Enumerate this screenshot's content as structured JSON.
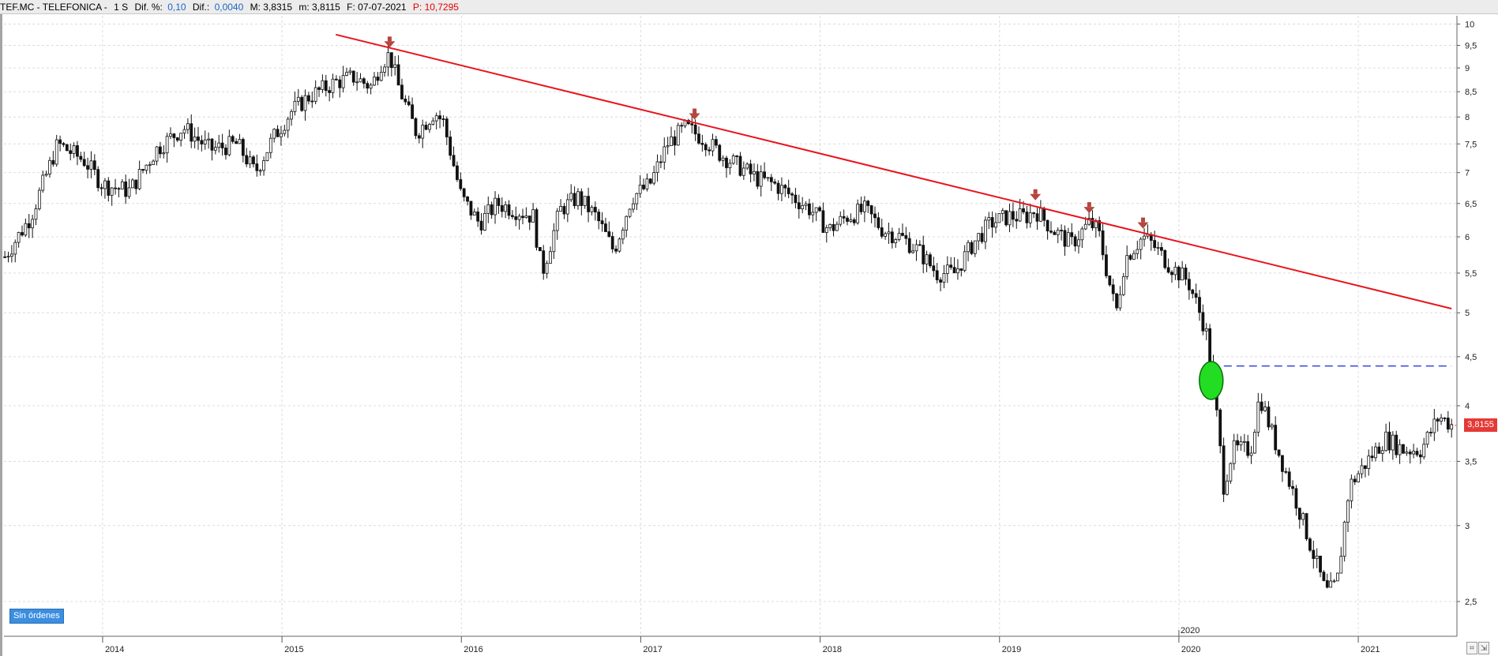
{
  "header": {
    "symbol": "TEF.MC - TELEFONICA -",
    "period": "1 S",
    "dif_pct_label": "Dif. %:",
    "dif_pct_value": "0,10",
    "dif_label": "Dif.:",
    "dif_value": "0,0040",
    "max_label": "M: 3,8315",
    "min_label": "m: 3,8115",
    "date_label": "F: 07-07-2021",
    "p_label": "P: 10,7295"
  },
  "status": {
    "orders": "Sin órdenes"
  },
  "price_tag": "3,8155",
  "colors": {
    "trendline": "#e8141c",
    "arrow": "#b5463f",
    "marker": "#22dd22",
    "support": "#3344dd",
    "price_tag": "#e53935"
  },
  "chart_data": {
    "type": "candlestick",
    "title": "",
    "y_scale": "log",
    "ylim": [
      2.3,
      10.2
    ],
    "y_ticks": [
      10,
      9.5,
      9,
      8.5,
      8,
      7.5,
      7,
      6.5,
      6,
      5.5,
      5,
      4.5,
      4,
      3.5,
      3,
      2.5
    ],
    "y_tick_labels": [
      "10",
      "9,5",
      "9",
      "8,5",
      "8",
      "7,5",
      "7",
      "6,5",
      "6",
      "5,5",
      "5",
      "4,5",
      "4",
      "3,5",
      "3",
      "2,5"
    ],
    "xlim": [
      2013.45,
      2021.55
    ],
    "x_ticks": [
      2014,
      2015,
      2016,
      2017,
      2018,
      2019,
      2020,
      2021
    ],
    "x_tick_labels": [
      "2014",
      "2015",
      "2016",
      "2017",
      "2018",
      "2019",
      "2020",
      "2021"
    ],
    "x_marker_label": "2020",
    "x_marker_at": 2020.0,
    "grid": true,
    "path": [
      [
        2013.45,
        5.7
      ],
      [
        2013.6,
        6.3
      ],
      [
        2013.75,
        7.5
      ],
      [
        2013.9,
        7.2
      ],
      [
        2014.0,
        6.8
      ],
      [
        2014.15,
        6.7
      ],
      [
        2014.3,
        7.4
      ],
      [
        2014.45,
        7.8
      ],
      [
        2014.6,
        7.4
      ],
      [
        2014.75,
        7.5
      ],
      [
        2014.85,
        7.0
      ],
      [
        2014.95,
        7.6
      ],
      [
        2015.05,
        8.1
      ],
      [
        2015.15,
        8.4
      ],
      [
        2015.3,
        8.7
      ],
      [
        2015.4,
        8.8
      ],
      [
        2015.5,
        8.6
      ],
      [
        2015.55,
        9.1
      ],
      [
        2015.6,
        9.3
      ],
      [
        2015.65,
        8.6
      ],
      [
        2015.75,
        7.7
      ],
      [
        2015.85,
        8.1
      ],
      [
        2015.9,
        7.9
      ],
      [
        2016.0,
        6.6
      ],
      [
        2016.1,
        6.2
      ],
      [
        2016.2,
        6.5
      ],
      [
        2016.3,
        6.4
      ],
      [
        2016.4,
        6.3
      ],
      [
        2016.45,
        5.5
      ],
      [
        2016.55,
        6.4
      ],
      [
        2016.65,
        6.6
      ],
      [
        2016.75,
        6.3
      ],
      [
        2016.85,
        5.8
      ],
      [
        2016.95,
        6.6
      ],
      [
        2017.05,
        6.8
      ],
      [
        2017.15,
        7.5
      ],
      [
        2017.25,
        7.8
      ],
      [
        2017.35,
        7.6
      ],
      [
        2017.45,
        7.3
      ],
      [
        2017.55,
        7.1
      ],
      [
        2017.65,
        6.9
      ],
      [
        2017.75,
        6.8
      ],
      [
        2017.85,
        6.6
      ],
      [
        2017.95,
        6.4
      ],
      [
        2018.05,
        6.1
      ],
      [
        2018.15,
        6.3
      ],
      [
        2018.25,
        6.4
      ],
      [
        2018.35,
        6.1
      ],
      [
        2018.45,
        6.0
      ],
      [
        2018.55,
        5.8
      ],
      [
        2018.65,
        5.5
      ],
      [
        2018.75,
        5.5
      ],
      [
        2018.85,
        5.9
      ],
      [
        2018.95,
        6.2
      ],
      [
        2019.05,
        6.3
      ],
      [
        2019.15,
        6.3
      ],
      [
        2019.2,
        6.4
      ],
      [
        2019.3,
        6.1
      ],
      [
        2019.4,
        5.9
      ],
      [
        2019.5,
        6.2
      ],
      [
        2019.55,
        6.1
      ],
      [
        2019.6,
        5.5
      ],
      [
        2019.65,
        5.0
      ],
      [
        2019.7,
        5.7
      ],
      [
        2019.8,
        6.0
      ],
      [
        2019.85,
        5.9
      ],
      [
        2019.95,
        5.6
      ],
      [
        2020.05,
        5.4
      ],
      [
        2020.1,
        5.1
      ],
      [
        2020.15,
        4.8
      ],
      [
        2020.2,
        4.1
      ],
      [
        2020.25,
        3.3
      ],
      [
        2020.3,
        3.6
      ],
      [
        2020.4,
        3.6
      ],
      [
        2020.45,
        4.1
      ],
      [
        2020.55,
        3.6
      ],
      [
        2020.65,
        3.2
      ],
      [
        2020.75,
        2.8
      ],
      [
        2020.82,
        2.55
      ],
      [
        2020.88,
        2.6
      ],
      [
        2020.95,
        3.3
      ],
      [
        2021.05,
        3.5
      ],
      [
        2021.15,
        3.7
      ],
      [
        2021.25,
        3.6
      ],
      [
        2021.35,
        3.6
      ],
      [
        2021.45,
        3.9
      ],
      [
        2021.52,
        3.82
      ]
    ],
    "trendline": {
      "x": [
        2015.3,
        2021.52
      ],
      "y": [
        9.75,
        5.05
      ]
    },
    "resistance_touches": [
      {
        "x": 2015.6,
        "y": 9.45
      },
      {
        "x": 2017.3,
        "y": 7.95
      },
      {
        "x": 2019.2,
        "y": 6.55
      },
      {
        "x": 2019.5,
        "y": 6.35
      },
      {
        "x": 2019.8,
        "y": 6.12
      }
    ],
    "breakout_marker": {
      "x": 2020.18,
      "y": 4.25
    },
    "support_line": {
      "y": 4.4,
      "x": [
        2020.18,
        2021.52
      ]
    },
    "last_price": 3.8155
  }
}
